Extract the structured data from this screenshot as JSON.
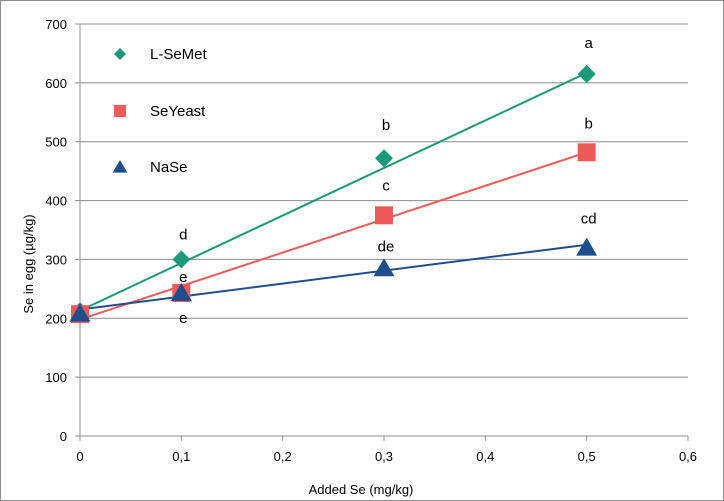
{
  "chart_data": {
    "type": "scatter",
    "xlabel": "Added Se (mg/kg)",
    "ylabel": "Se in egg (µg/kg)",
    "xlim": [
      0,
      0.6
    ],
    "ylim": [
      0,
      700
    ],
    "x_ticks": [
      "0",
      "0,1",
      "0,2",
      "0,3",
      "0,4",
      "0,5",
      "0,6"
    ],
    "y_ticks": [
      "0",
      "100",
      "200",
      "300",
      "400",
      "500",
      "600",
      "700"
    ],
    "grid": "horizontal",
    "legend_position": "top-left",
    "series": [
      {
        "name": "L-SeMet",
        "color": "#1a9a78",
        "marker": "diamond",
        "points": [
          [
            0,
            212
          ],
          [
            0.1,
            300
          ],
          [
            0.3,
            472
          ],
          [
            0.5,
            615
          ]
        ],
        "trendline": [
          [
            0,
            213
          ],
          [
            0.5,
            617
          ]
        ],
        "labels": [
          "",
          "d",
          "b",
          "a"
        ]
      },
      {
        "name": "SeYeast",
        "color": "#ee5a5a",
        "marker": "square",
        "points": [
          [
            0,
            207
          ],
          [
            0.1,
            243
          ],
          [
            0.3,
            375
          ],
          [
            0.5,
            482
          ]
        ],
        "trendline": [
          [
            0,
            198
          ],
          [
            0.5,
            482
          ]
        ],
        "labels": [
          "",
          "e",
          "c",
          "b"
        ]
      },
      {
        "name": "NaSe",
        "color": "#1f4e8c",
        "marker": "triangle",
        "points": [
          [
            0,
            208
          ],
          [
            0.1,
            243
          ],
          [
            0.3,
            285
          ],
          [
            0.5,
            320
          ]
        ],
        "trendline": [
          [
            0,
            215
          ],
          [
            0.5,
            325
          ]
        ],
        "labels": [
          "",
          "e",
          "de",
          "cd"
        ]
      }
    ]
  }
}
